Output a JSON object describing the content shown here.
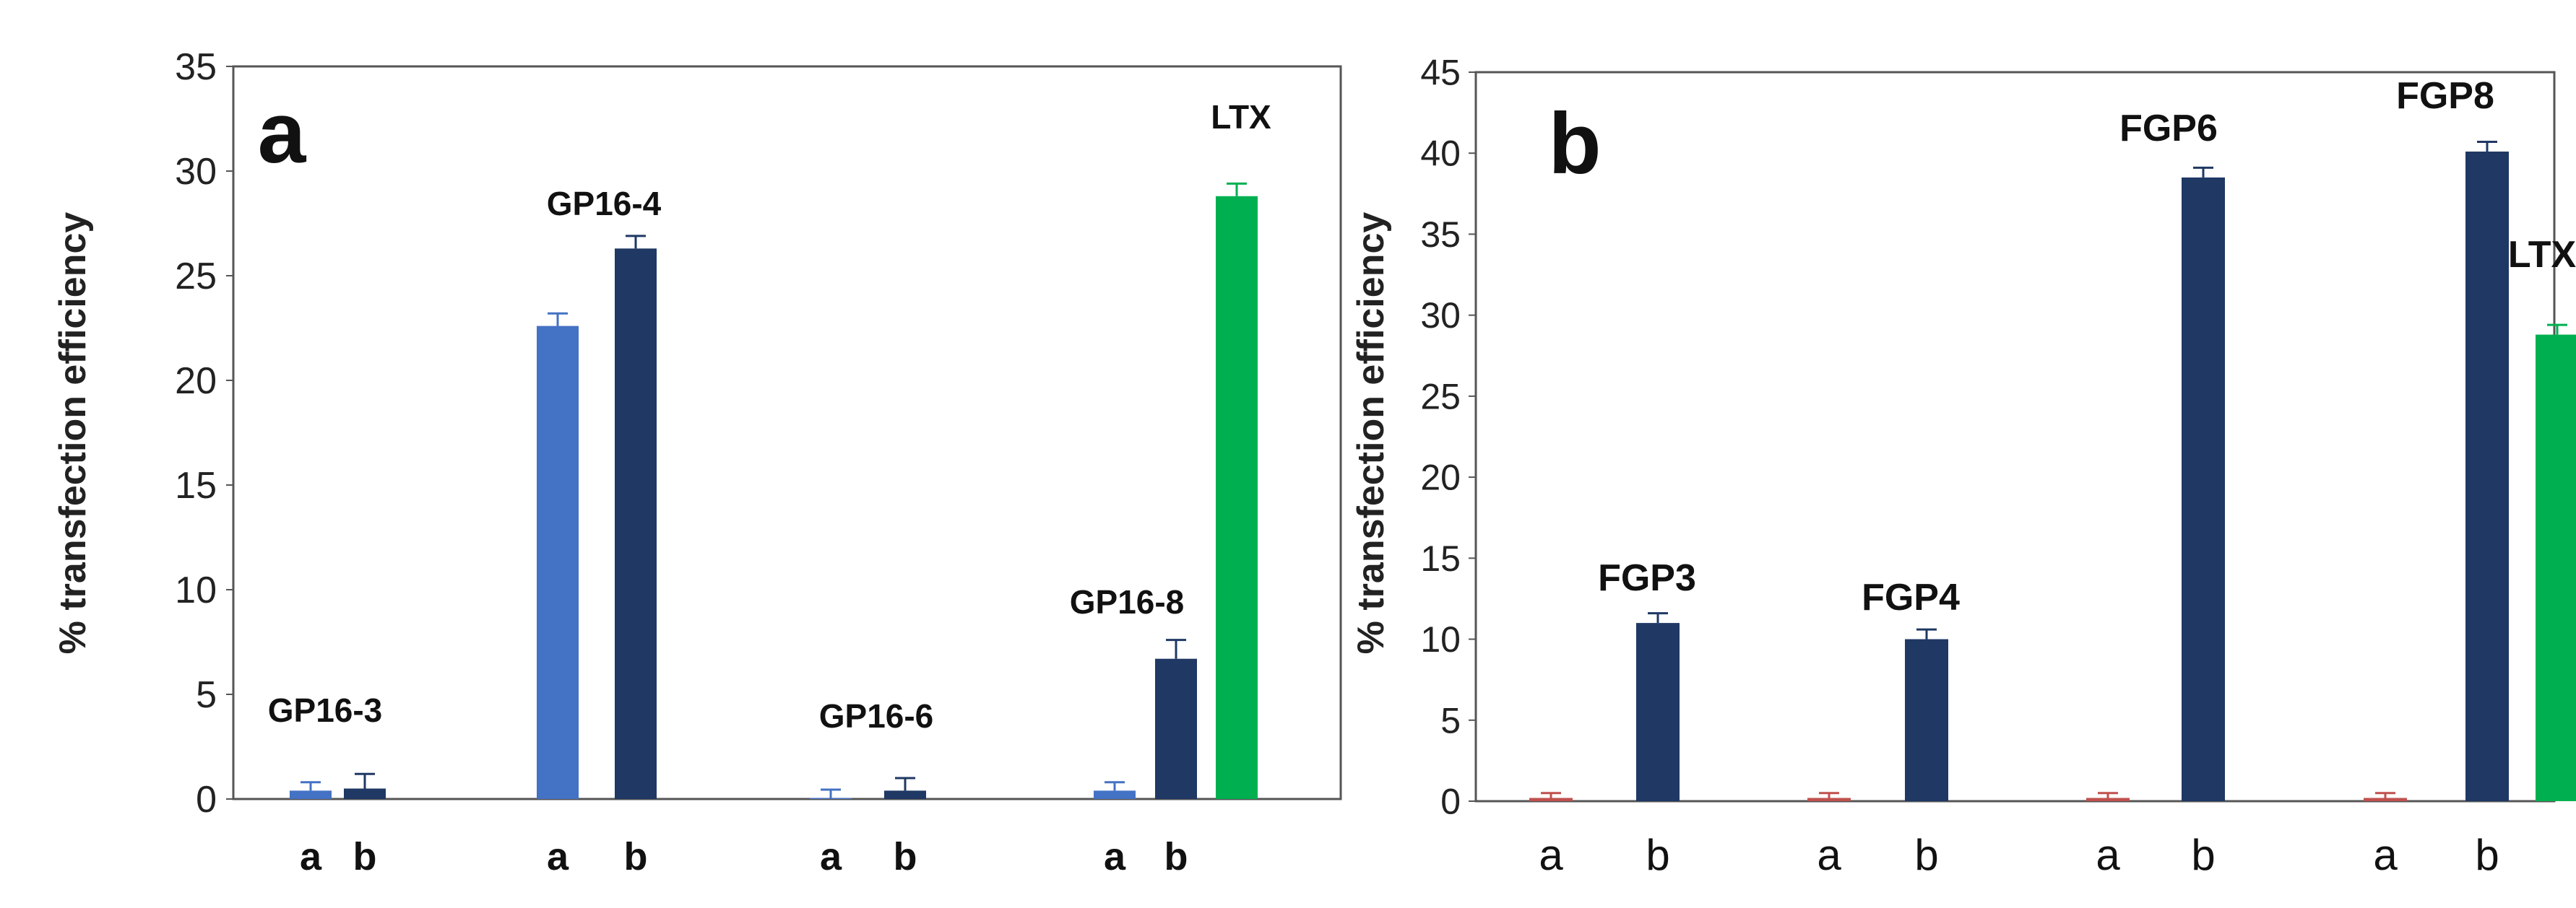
{
  "chart_data": [
    {
      "panel": "a",
      "type": "bar",
      "ylabel": "% transfection efficiency",
      "ylim": [
        0,
        35
      ],
      "yticks": [
        0,
        5,
        10,
        15,
        20,
        25,
        30,
        35
      ],
      "groups": [
        {
          "label": "GP16-3",
          "bars": [
            {
              "category": "a",
              "value": 0.4,
              "error": 0.4,
              "color": "#4472c4"
            },
            {
              "category": "b",
              "value": 0.5,
              "error": 0.7,
              "color": "#1f3864"
            }
          ]
        },
        {
          "label": "GP16-4",
          "bars": [
            {
              "category": "a",
              "value": 22.6,
              "error": 0.6,
              "color": "#4472c4"
            },
            {
              "category": "b",
              "value": 26.3,
              "error": 0.6,
              "color": "#1f3864"
            }
          ]
        },
        {
          "label": "GP16-6",
          "bars": [
            {
              "category": "a",
              "value": 0.05,
              "error": 0.4,
              "color": "#4472c4"
            },
            {
              "category": "b",
              "value": 0.4,
              "error": 0.6,
              "color": "#1f3864"
            }
          ]
        },
        {
          "label": "GP16-8",
          "bars": [
            {
              "category": "a",
              "value": 0.4,
              "error": 0.4,
              "color": "#4472c4"
            },
            {
              "category": "b",
              "value": 6.7,
              "error": 0.9,
              "color": "#1f3864"
            }
          ]
        },
        {
          "label": "LTX",
          "bars": [
            {
              "category": "",
              "value": 28.8,
              "error": 0.6,
              "color": "#00b050"
            }
          ]
        }
      ]
    },
    {
      "panel": "b",
      "type": "bar",
      "ylabel": "% transfection efficiency",
      "ylim": [
        0,
        45
      ],
      "yticks": [
        0,
        5,
        10,
        15,
        20,
        25,
        30,
        35,
        40,
        45
      ],
      "groups": [
        {
          "label": "FGP3",
          "bars": [
            {
              "category": "a",
              "value": 0.2,
              "error": 0.3,
              "color": "#c0504d"
            },
            {
              "category": "b",
              "value": 11.0,
              "error": 0.6,
              "color": "#1f3864"
            }
          ]
        },
        {
          "label": "FGP4",
          "bars": [
            {
              "category": "a",
              "value": 0.2,
              "error": 0.3,
              "color": "#c0504d"
            },
            {
              "category": "b",
              "value": 10.0,
              "error": 0.6,
              "color": "#1f3864"
            }
          ]
        },
        {
          "label": "FGP6",
          "bars": [
            {
              "category": "a",
              "value": 0.2,
              "error": 0.3,
              "color": "#c0504d"
            },
            {
              "category": "b",
              "value": 38.5,
              "error": 0.6,
              "color": "#1f3864"
            }
          ]
        },
        {
          "label": "FGP8",
          "bars": [
            {
              "category": "a",
              "value": 0.2,
              "error": 0.3,
              "color": "#c0504d"
            },
            {
              "category": "b",
              "value": 40.1,
              "error": 0.6,
              "color": "#1f3864"
            }
          ]
        },
        {
          "label": "LTX",
          "bars": [
            {
              "category": "",
              "value": 28.8,
              "error": 0.6,
              "color": "#00b050"
            }
          ]
        }
      ]
    }
  ]
}
